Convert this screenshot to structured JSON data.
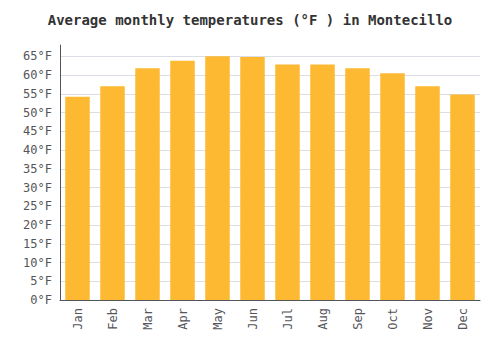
{
  "chart_data": {
    "type": "bar",
    "title": "Average monthly temperatures (°F ) in Montecillo",
    "categories": [
      "Jan",
      "Feb",
      "Mar",
      "Apr",
      "May",
      "Jun",
      "Jul",
      "Aug",
      "Sep",
      "Oct",
      "Nov",
      "Dec"
    ],
    "values": [
      54.2,
      57.0,
      61.8,
      63.8,
      65.0,
      64.8,
      62.8,
      62.8,
      61.8,
      60.5,
      57.0,
      54.8
    ],
    "color": "#FDB931",
    "ylim": [
      0,
      68
    ],
    "yticks": [
      {
        "value": 0,
        "label": "0°F"
      },
      {
        "value": 5,
        "label": "5°F"
      },
      {
        "value": 10,
        "label": "10°F"
      },
      {
        "value": 15,
        "label": "15°F"
      },
      {
        "value": 20,
        "label": "20°F"
      },
      {
        "value": 25,
        "label": "25°F"
      },
      {
        "value": 30,
        "label": "30°F"
      },
      {
        "value": 35,
        "label": "35°F"
      },
      {
        "value": 40,
        "label": "40°F"
      },
      {
        "value": 45,
        "label": "45°F"
      },
      {
        "value": 50,
        "label": "50°F"
      },
      {
        "value": 55,
        "label": "55°F"
      },
      {
        "value": 60,
        "label": "60°F"
      },
      {
        "value": 65,
        "label": "65°F"
      }
    ],
    "grid": true
  }
}
